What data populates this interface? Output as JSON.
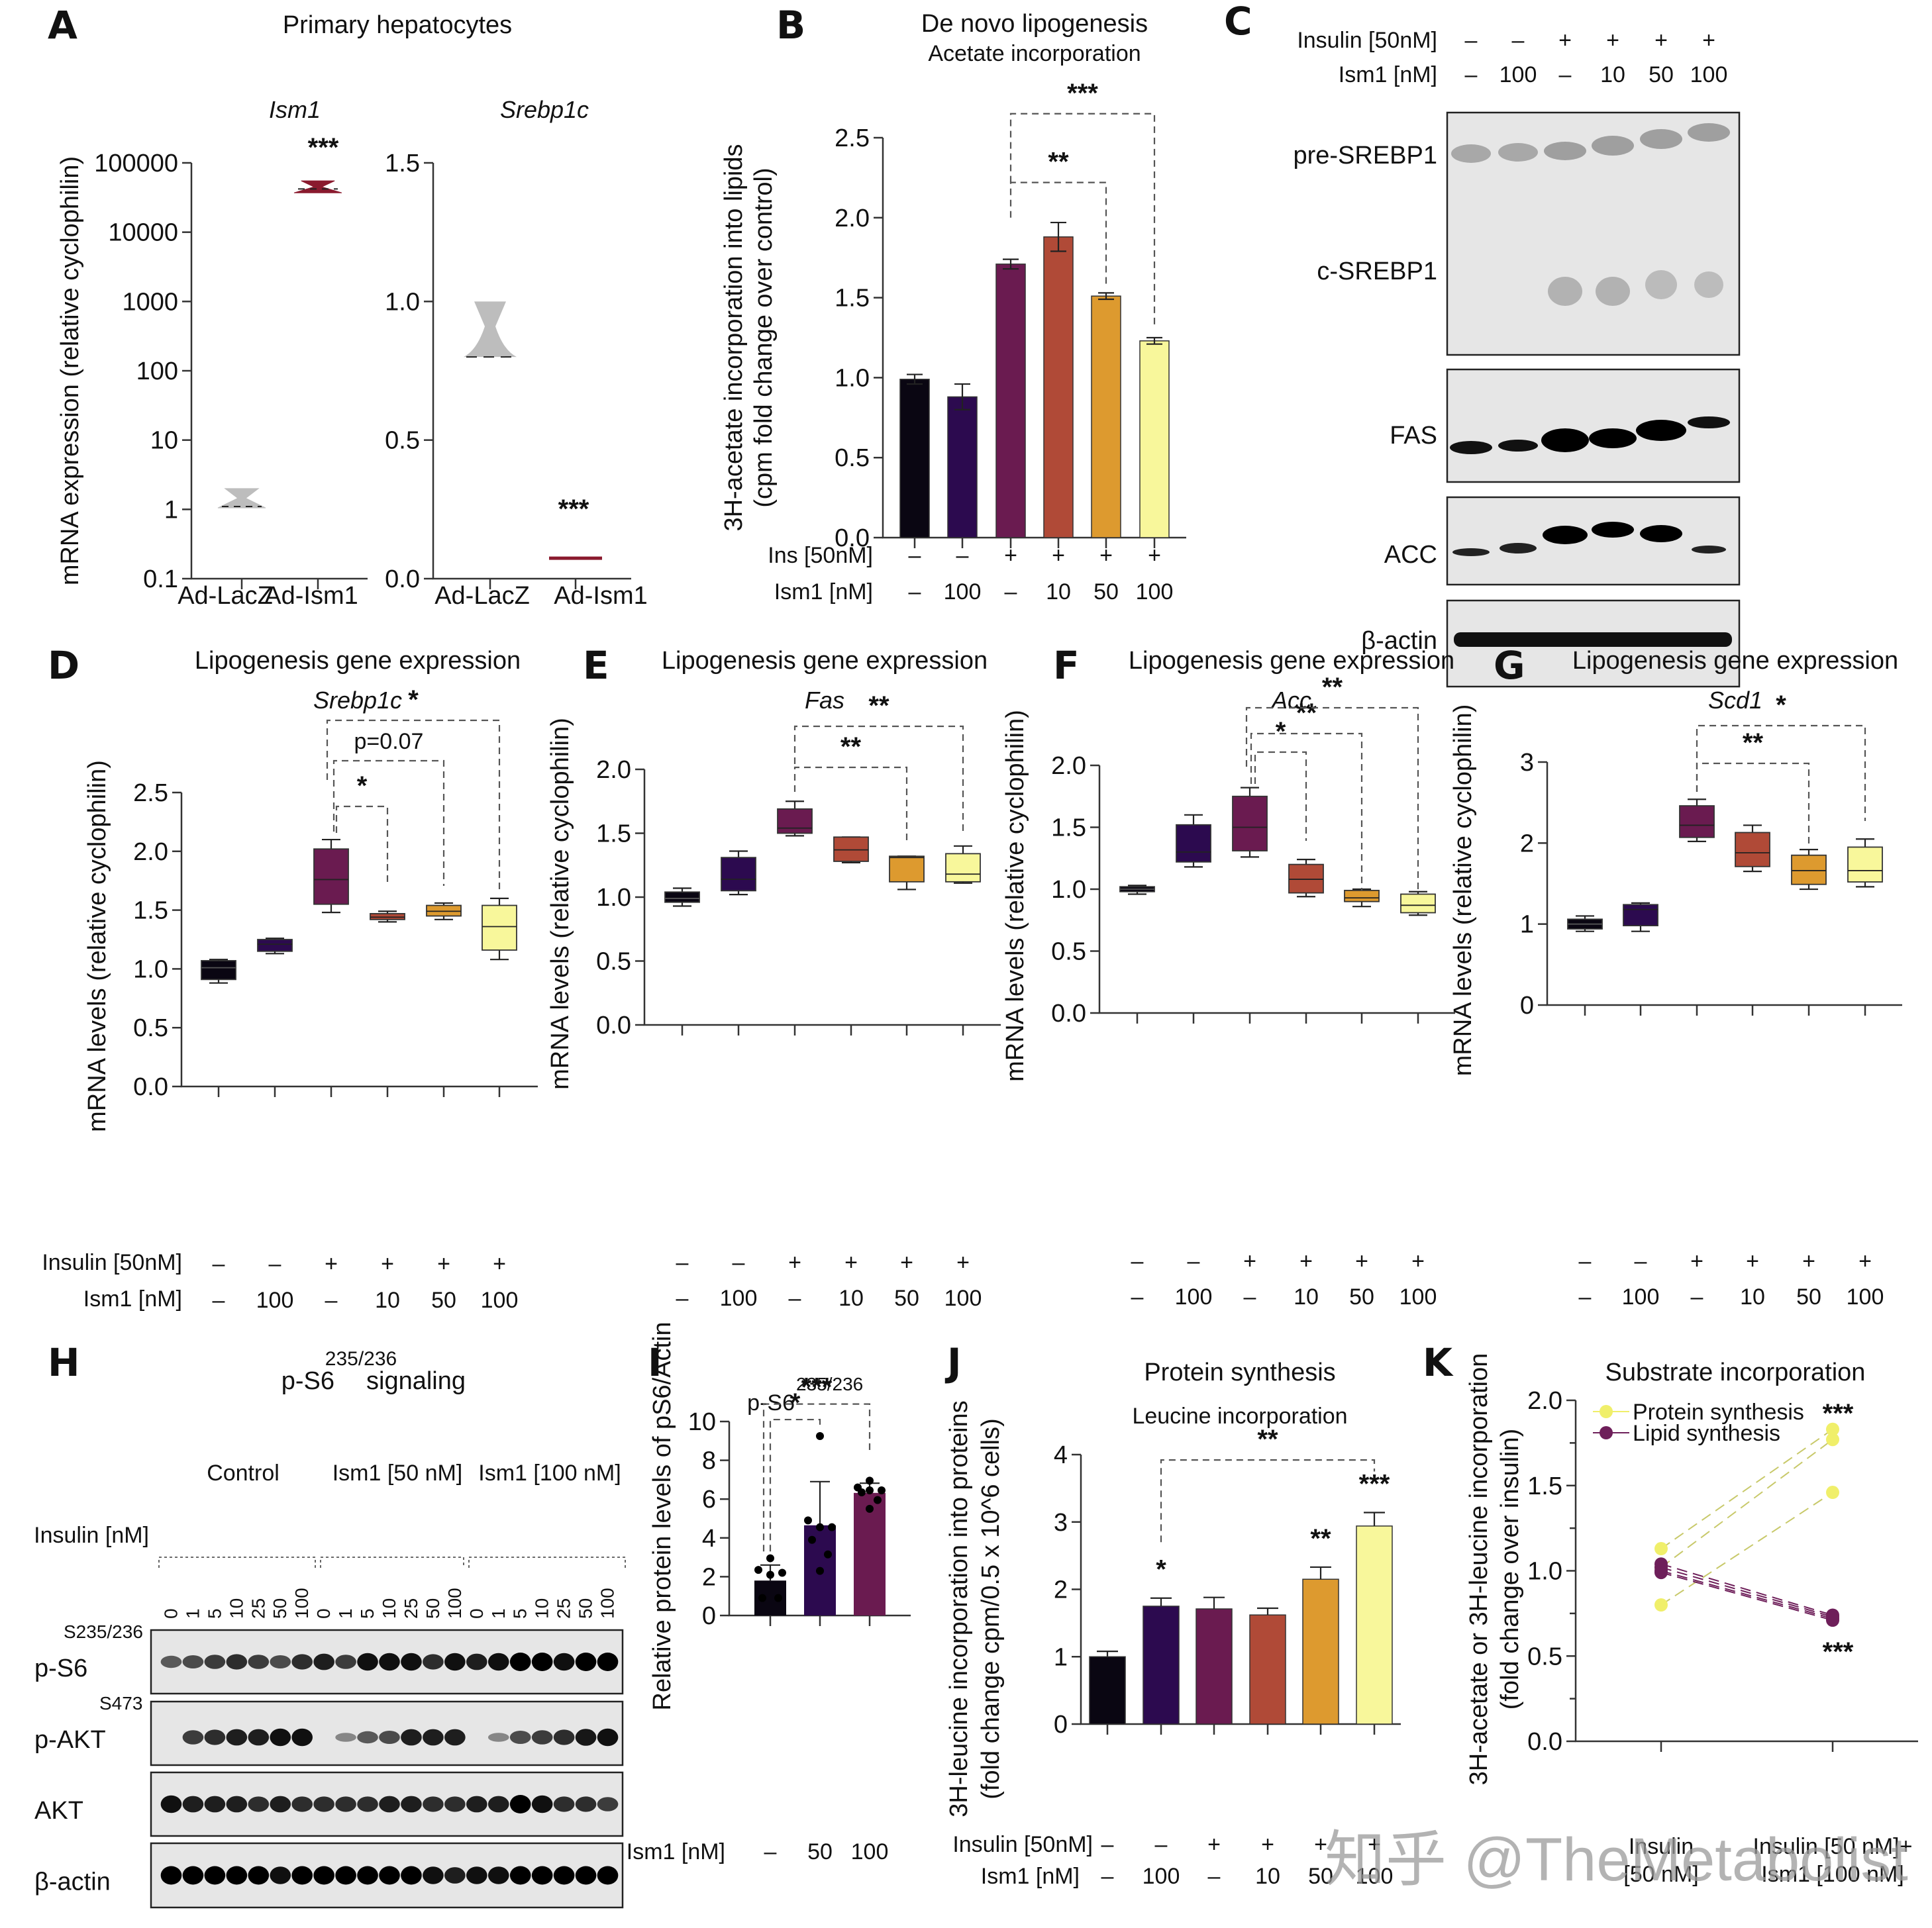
{
  "figure": {
    "watermark": "知乎 @TheMetabolist"
  },
  "colors": {
    "ctrl": "#0a0612",
    "ism100": "#2c0a4f",
    "ins": "#6a1b50",
    "ins_ism10": "#b04a37",
    "ins_ism50": "#dd9a2f",
    "ins_ism100": "#f8f79b",
    "lacz": "#bdbdbd",
    "adism1": "#8a1a2e",
    "protein": "#f0ef6a",
    "lipid": "#6e1f5a"
  },
  "conditions": {
    "insulin_label": "Insulin [50nM]",
    "ins_label_short": "Ins [50nM]",
    "ism1_label": "Ism1 [nM]",
    "insulin": [
      "–",
      "–",
      "+",
      "+",
      "+",
      "+"
    ],
    "ism1": [
      "–",
      "100",
      "–",
      "10",
      "50",
      "100"
    ]
  },
  "chart_data": [
    {
      "panel": "A",
      "type": "violin",
      "title": "Primary hepatocytes",
      "subtitle": "Ism1",
      "ylabel": "mRNA expression (relative cyclophilin)",
      "yscale": "log",
      "ylim": [
        0.1,
        100000
      ],
      "yticks": [
        "0.1",
        "1",
        "10",
        "100",
        "1000",
        "10000",
        "100000"
      ],
      "categories": [
        "Ad-LacZ",
        "Ad-Ism1"
      ],
      "series": [
        {
          "name": "Ad-LacZ",
          "min": 1.05,
          "median": 1.1,
          "max": 2.0
        },
        {
          "name": "Ad-Ism1",
          "min": 37000,
          "median": 42000,
          "max": 55000
        }
      ],
      "annotations": [
        {
          "category": "Ad-Ism1",
          "text": "***"
        }
      ]
    },
    {
      "panel": "A2",
      "type": "violin",
      "subtitle": "Srebp1c",
      "yscale": "linear",
      "ylim": [
        0.0,
        1.5
      ],
      "yticks": [
        "0.0",
        "0.5",
        "1.0",
        "1.5"
      ],
      "categories": [
        "Ad-LacZ",
        "Ad-Ism1"
      ],
      "series": [
        {
          "name": "Ad-LacZ",
          "min": 0.8,
          "median": 0.8,
          "max": 1.0
        },
        {
          "name": "Ad-Ism1",
          "min": 0.065,
          "median": 0.07,
          "max": 0.075
        }
      ],
      "annotations": [
        {
          "category": "Ad-Ism1",
          "text": "***"
        }
      ]
    },
    {
      "panel": "B",
      "type": "bar",
      "title": "De novo lipogenesis",
      "subtitle": "Acetate incorporation",
      "ylabel": "3H-acetate incorporation into lipids",
      "ylabel2": "(cpm fold change over control)",
      "ylim": [
        0.0,
        2.5
      ],
      "yticks": [
        "0.0",
        "0.5",
        "1.0",
        "1.5",
        "2.0",
        "2.5"
      ],
      "values": [
        0.99,
        0.88,
        1.71,
        1.88,
        1.51,
        1.23
      ],
      "errors": [
        0.03,
        0.08,
        0.03,
        0.09,
        0.02,
        0.02
      ],
      "brackets": [
        {
          "from": 2,
          "to": 4,
          "text": "**"
        },
        {
          "from": 2,
          "to": 5,
          "text": "***"
        }
      ]
    },
    {
      "panel": "D",
      "type": "box",
      "title": "Lipogenesis gene expression",
      "subtitle": "Srebp1c",
      "ylabel": "mRNA levels (relative cyclophilin)",
      "ylim": [
        0.0,
        2.5
      ],
      "yticks": [
        "0.0",
        "0.5",
        "1.0",
        "1.5",
        "2.0",
        "2.5"
      ],
      "boxes": [
        {
          "min": 0.88,
          "q1": 0.91,
          "median": 1.01,
          "q3": 1.07,
          "max": 1.08
        },
        {
          "min": 1.13,
          "q1": 1.15,
          "median": 1.21,
          "q3": 1.25,
          "max": 1.26
        },
        {
          "min": 1.48,
          "q1": 1.55,
          "median": 1.76,
          "q3": 2.02,
          "max": 2.1
        },
        {
          "min": 1.4,
          "q1": 1.42,
          "median": 1.44,
          "q3": 1.47,
          "max": 1.49
        },
        {
          "min": 1.42,
          "q1": 1.45,
          "median": 1.49,
          "q3": 1.54,
          "max": 1.56
        },
        {
          "min": 1.08,
          "q1": 1.16,
          "median": 1.36,
          "q3": 1.54,
          "max": 1.6
        }
      ],
      "brackets": [
        {
          "from": 2,
          "to": 3,
          "text": "*"
        },
        {
          "from": 2,
          "to": 4,
          "text": "p=0.07"
        },
        {
          "from": 2,
          "to": 5,
          "text": "*"
        }
      ]
    },
    {
      "panel": "E",
      "type": "box",
      "title": "Lipogenesis gene expression",
      "subtitle": "Fas",
      "ylabel": "mRNA levels (relative cyclophilin)",
      "ylim": [
        0.0,
        2.0
      ],
      "yticks": [
        "0.0",
        "0.5",
        "1.0",
        "1.5",
        "2.0"
      ],
      "boxes": [
        {
          "min": 0.93,
          "q1": 0.96,
          "median": 0.99,
          "q3": 1.04,
          "max": 1.07
        },
        {
          "min": 1.02,
          "q1": 1.05,
          "median": 1.14,
          "q3": 1.31,
          "max": 1.36
        },
        {
          "min": 1.48,
          "q1": 1.5,
          "median": 1.54,
          "q3": 1.69,
          "max": 1.75
        },
        {
          "min": 1.27,
          "q1": 1.28,
          "median": 1.37,
          "q3": 1.47,
          "max": 1.47
        },
        {
          "min": 1.06,
          "q1": 1.12,
          "median": 1.31,
          "q3": 1.32,
          "max": 1.32
        },
        {
          "min": 1.11,
          "q1": 1.12,
          "median": 1.18,
          "q3": 1.34,
          "max": 1.4
        }
      ],
      "brackets": [
        {
          "from": 2,
          "to": 4,
          "text": "**"
        },
        {
          "from": 2,
          "to": 5,
          "text": "**"
        }
      ]
    },
    {
      "panel": "F",
      "type": "box",
      "title": "Lipogenesis gene expression",
      "subtitle": "Acc",
      "ylabel": "mRNA levels (relative cyclophilin)",
      "ylim": [
        0.0,
        2.0
      ],
      "yticks": [
        "0.0",
        "0.5",
        "1.0",
        "1.5",
        "2.0"
      ],
      "boxes": [
        {
          "min": 0.96,
          "q1": 0.98,
          "median": 1.0,
          "q3": 1.02,
          "max": 1.03
        },
        {
          "min": 1.18,
          "q1": 1.22,
          "median": 1.3,
          "q3": 1.52,
          "max": 1.6
        },
        {
          "min": 1.26,
          "q1": 1.31,
          "median": 1.5,
          "q3": 1.75,
          "max": 1.82
        },
        {
          "min": 0.94,
          "q1": 0.97,
          "median": 1.08,
          "q3": 1.2,
          "max": 1.24
        },
        {
          "min": 0.86,
          "q1": 0.9,
          "median": 0.93,
          "q3": 0.99,
          "max": 1.0
        },
        {
          "min": 0.79,
          "q1": 0.81,
          "median": 0.87,
          "q3": 0.96,
          "max": 0.98
        }
      ],
      "brackets": [
        {
          "from": 2,
          "to": 3,
          "text": "*"
        },
        {
          "from": 2,
          "to": 4,
          "text": "**"
        },
        {
          "from": 2,
          "to": 5,
          "text": "**"
        }
      ]
    },
    {
      "panel": "G",
      "type": "box",
      "title": "Lipogenesis gene expression",
      "subtitle": "Scd1",
      "ylabel": "mRNA levels (relative cyclophilin)",
      "ylim": [
        0,
        3
      ],
      "yticks": [
        "0",
        "1",
        "2",
        "3"
      ],
      "boxes": [
        {
          "min": 0.91,
          "q1": 0.94,
          "median": 1.0,
          "q3": 1.06,
          "max": 1.1
        },
        {
          "min": 0.91,
          "q1": 0.98,
          "median": 1.18,
          "q3": 1.24,
          "max": 1.26
        },
        {
          "min": 2.02,
          "q1": 2.07,
          "median": 2.22,
          "q3": 2.46,
          "max": 2.54
        },
        {
          "min": 1.65,
          "q1": 1.71,
          "median": 1.88,
          "q3": 2.13,
          "max": 2.22
        },
        {
          "min": 1.43,
          "q1": 1.49,
          "median": 1.66,
          "q3": 1.85,
          "max": 1.92
        },
        {
          "min": 1.46,
          "q1": 1.52,
          "median": 1.66,
          "q3": 1.95,
          "max": 2.05
        }
      ],
      "brackets": [
        {
          "from": 2,
          "to": 4,
          "text": "**"
        },
        {
          "from": 2,
          "to": 5,
          "text": "*"
        }
      ]
    },
    {
      "panel": "I",
      "type": "bar",
      "title": "p-S6",
      "title_sup": "235/236",
      "ylabel": "Relative protein levels of pS6/Actin",
      "xlabel": "Ism1 [nM]",
      "ylim": [
        0,
        10
      ],
      "yticks": [
        "0",
        "2",
        "4",
        "6",
        "8",
        "10"
      ],
      "categories": [
        "–",
        "50",
        "100"
      ],
      "values": [
        1.8,
        4.65,
        6.32
      ],
      "errors": [
        0.8,
        2.25,
        0.5
      ],
      "points": [
        [
          2.95,
          2.35,
          2.2,
          2.1,
          0.9,
          0.9
        ],
        [
          9.25,
          4.9,
          4.55,
          4.55,
          3.9,
          3.15,
          2.3
        ],
        [
          6.95,
          6.6,
          6.45,
          6.45,
          6.35,
          5.95,
          5.5
        ]
      ],
      "brackets": [
        {
          "from": 0,
          "to": 1,
          "text": "*"
        },
        {
          "from": 0,
          "to": 2,
          "text": "***"
        }
      ]
    },
    {
      "panel": "J",
      "type": "bar",
      "title": "Protein synthesis",
      "subtitle": "Leucine incorporation",
      "ylabel": "3H-leucine incorporation into proteins",
      "ylabel2": "(fold change cpm/0.5 x 10^6 cells)",
      "ylim": [
        0,
        4
      ],
      "yticks": [
        "0",
        "1",
        "2",
        "3",
        "4"
      ],
      "values": [
        1.0,
        1.75,
        1.71,
        1.62,
        2.15,
        2.94
      ],
      "errors": [
        0.08,
        0.12,
        0.17,
        0.1,
        0.18,
        0.2
      ],
      "annotations": [
        {
          "index": 1,
          "text": "*"
        },
        {
          "index": 4,
          "text": "**"
        },
        {
          "index": 5,
          "text": "***"
        }
      ],
      "brackets": [
        {
          "from": 1,
          "to": 5,
          "text": "**"
        }
      ]
    },
    {
      "panel": "K",
      "type": "line",
      "title": "Substrate incorporation",
      "ylabel": "3H-acetate or 3H-leucine incorporation",
      "ylabel2": "(fold change over insulin)",
      "ylim": [
        0.0,
        2.0
      ],
      "yticks": [
        "0.0",
        "0.5",
        "1.0",
        "1.5",
        "2.0"
      ],
      "x": [
        "Insulin [50 nM]",
        "Insulin [50 nM]+ Ism1 [100 nM]"
      ],
      "legend": "top-left",
      "series": [
        {
          "name": "Protein synthesis",
          "pairs": [
            [
              1.13,
              1.83
            ],
            [
              1.02,
              1.77
            ],
            [
              0.8,
              1.46
            ]
          ]
        },
        {
          "name": "Lipid synthesis",
          "pairs": [
            [
              1.04,
              0.74
            ],
            [
              1.02,
              0.73
            ],
            [
              1.0,
              0.72
            ],
            [
              0.99,
              0.71
            ]
          ]
        }
      ],
      "annotations": [
        {
          "series": "Protein synthesis",
          "text": "***"
        },
        {
          "series": "Lipid synthesis",
          "text": "***"
        }
      ]
    }
  ],
  "panels": {
    "A": {
      "letter": "A",
      "title": "Primary hepatocytes",
      "gene1": "Ism1",
      "gene2": "Srebp1c",
      "ylabel": "mRNA expression (relative cyclophilin)",
      "xcats": [
        "Ad-LacZ",
        "Ad-Ism1"
      ]
    },
    "B": {
      "letter": "B",
      "title": "De novo lipogenesis",
      "subtitle": "Acetate incorporation",
      "ylabel1": "3H-acetate incorporation into lipids",
      "ylabel2": "(cpm fold change over control)"
    },
    "C": {
      "letter": "C",
      "insulin_label": "Insulin [50nM]",
      "ism1_label": "Ism1 [nM]",
      "blots": [
        "pre-SREBP1",
        "c-SREBP1",
        "FAS",
        "ACC",
        "β-actin"
      ]
    },
    "D": {
      "letter": "D"
    },
    "E": {
      "letter": "E"
    },
    "F": {
      "letter": "F"
    },
    "G": {
      "letter": "G"
    },
    "H": {
      "letter": "H",
      "title_main": "p-S6",
      "title_sup": "235/236",
      "title_tail": "signaling",
      "groups": [
        "Control",
        "Ism1 [50 nM]",
        "Ism1 [100 nM]"
      ],
      "insulin_label": "Insulin [nM]",
      "doses": [
        "0",
        "1",
        "5",
        "10",
        "25",
        "50",
        "100"
      ],
      "blots": [
        {
          "name": "p-S6",
          "sup": "S235/236"
        },
        {
          "name": "p-AKT",
          "sup": "S473"
        },
        {
          "name": "AKT",
          "sup": ""
        },
        {
          "name": "β-actin",
          "sup": ""
        }
      ]
    },
    "I": {
      "letter": "I",
      "title": "p-S6",
      "title_sup": "235/236",
      "ylabel": "Relative protein levels of pS6/Actin",
      "xlabel": "Ism1 [nM]"
    },
    "J": {
      "letter": "J"
    },
    "K": {
      "letter": "K",
      "xcat1a": "Insulin",
      "xcat1b": "[50 nM]",
      "xcat2a": "Insulin [50 nM]+",
      "xcat2b": "Ism1 [100 nM]"
    }
  }
}
